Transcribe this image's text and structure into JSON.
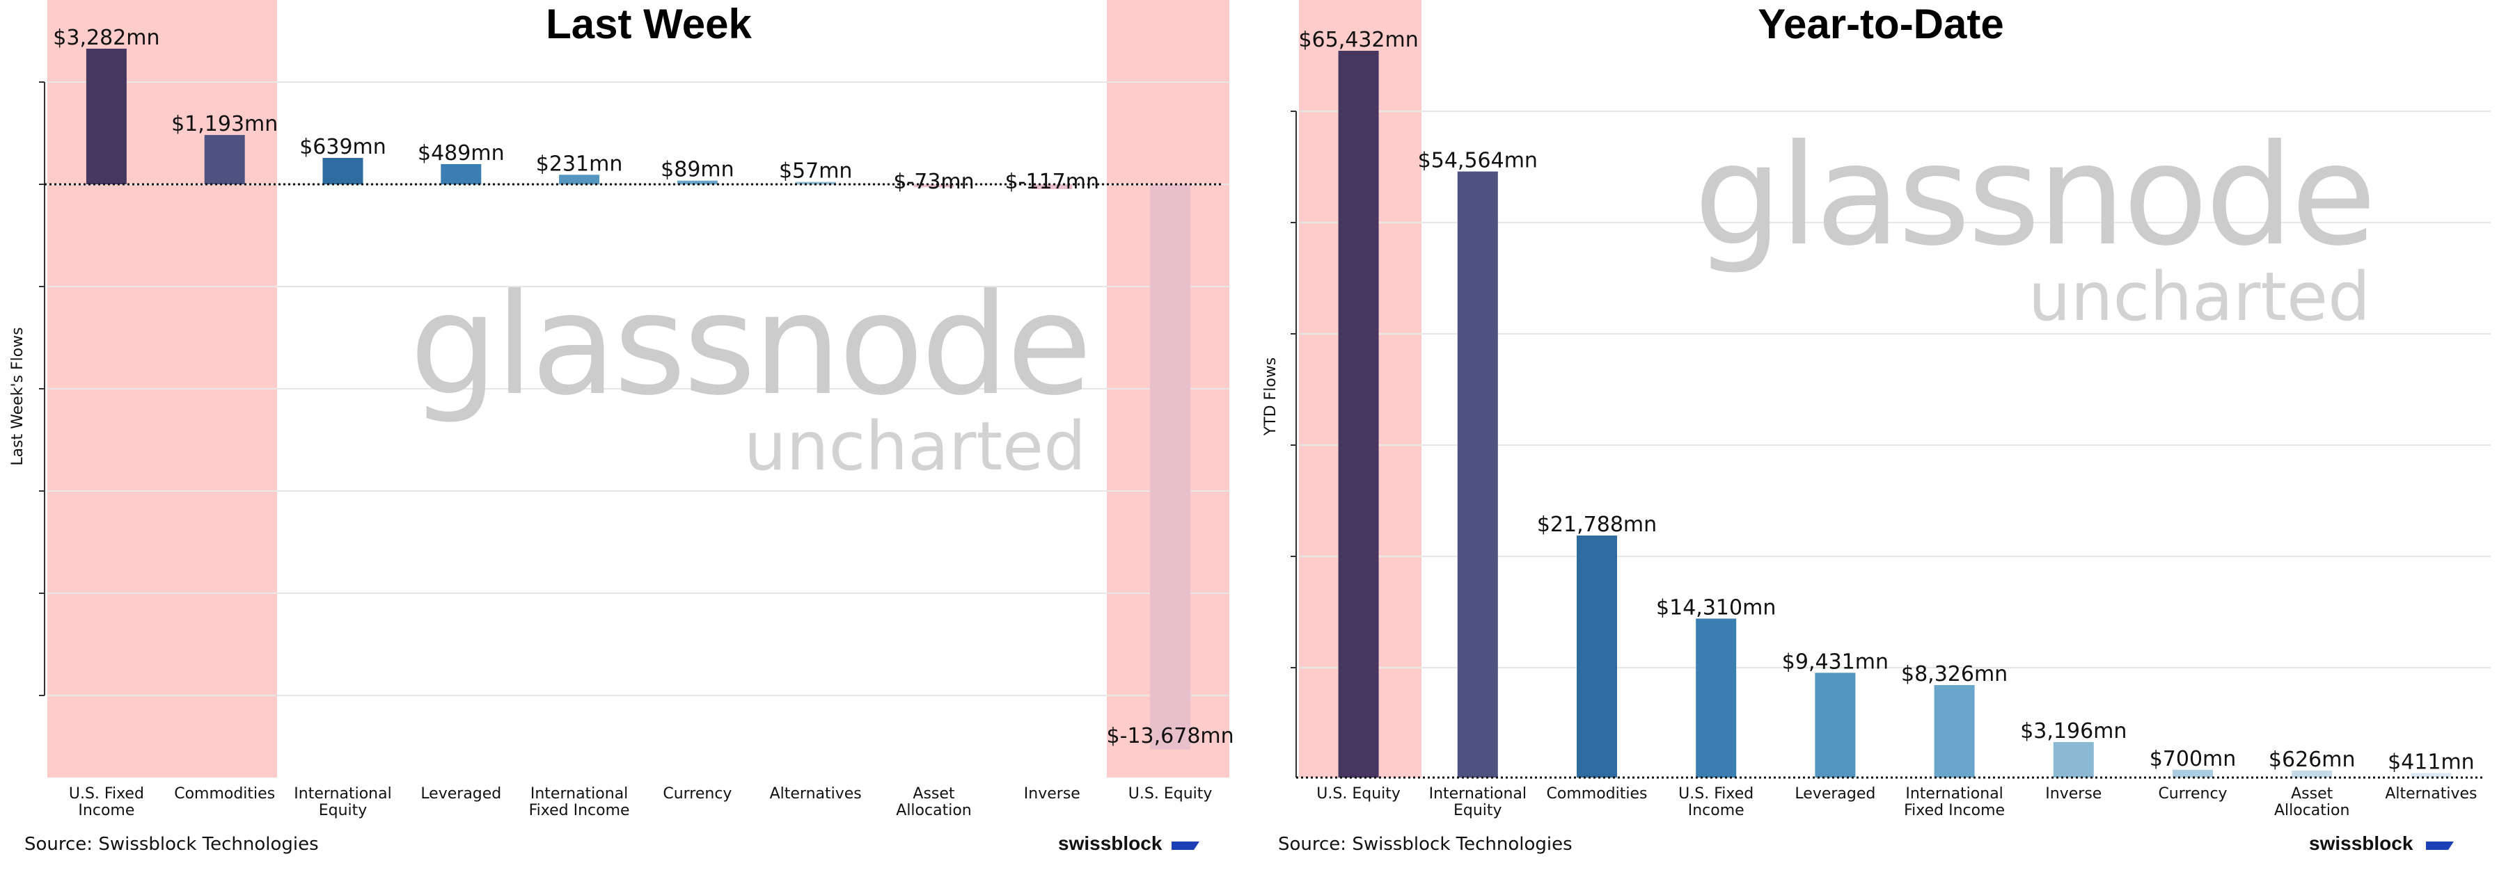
{
  "chart_data": [
    {
      "type": "bar",
      "title": "Last Week",
      "ylabel": "Last Week's Flows",
      "xlabel": "",
      "categories": [
        [
          "U.S. Fixed",
          "Income"
        ],
        [
          "Commodities"
        ],
        [
          "International",
          "Equity"
        ],
        [
          "Leveraged"
        ],
        [
          "International",
          "Fixed Income"
        ],
        [
          "Currency"
        ],
        [
          "Alternatives"
        ],
        [
          "Asset",
          "Allocation"
        ],
        [
          "Inverse"
        ],
        [
          "U.S. Equity"
        ]
      ],
      "values": [
        3282,
        1193,
        639,
        489,
        231,
        89,
        57,
        -73,
        -117,
        -13678
      ],
      "value_labels": [
        "$3,282mn",
        "$1,193mn",
        "$639mn",
        "$489mn",
        "$231mn",
        "$89mn",
        "$57mn",
        "$-73mn",
        "$-117mn",
        "$-13,678mn"
      ],
      "ylim": [
        -14000,
        3300
      ],
      "highlighted_categories": [
        "U.S. Fixed Income",
        "Commodities",
        "U.S. Equity"
      ],
      "zero_line": "dotted",
      "grid": true
    },
    {
      "type": "bar",
      "title": "Year-to-Date",
      "ylabel": "YTD Flows",
      "xlabel": "",
      "categories": [
        [
          "U.S. Equity"
        ],
        [
          "International",
          "Equity"
        ],
        [
          "Commodities"
        ],
        [
          "U.S. Fixed",
          "Income"
        ],
        [
          "Leveraged"
        ],
        [
          "International",
          "Fixed Income"
        ],
        [
          "Inverse"
        ],
        [
          "Currency"
        ],
        [
          "Asset",
          "Allocation"
        ],
        [
          "Alternatives"
        ]
      ],
      "values": [
        65432,
        54564,
        21788,
        14310,
        9431,
        8326,
        3196,
        700,
        626,
        411
      ],
      "value_labels": [
        "$65,432mn",
        "$54,564mn",
        "$21,788mn",
        "$14,310mn",
        "$9,431mn",
        "$8,326mn",
        "$3,196mn",
        "$700mn",
        "$626mn",
        "$411mn"
      ],
      "ylim": [
        0,
        66000
      ],
      "highlighted_categories": [
        "U.S. Equity"
      ],
      "zero_line": "dotted",
      "grid": true
    }
  ],
  "watermark": {
    "line1": "glassnode",
    "line2": "uncharted"
  },
  "footer": {
    "source": "Source: Swissblock Technologies",
    "brand": "swissblock"
  },
  "colors": {
    "highlight_band": "#ffcccc",
    "bars_positive_gradient": [
      "#45375f",
      "#4e5280",
      "#2e6b9e",
      "#3b7fb2",
      "#5496c0",
      "#6aa6cc",
      "#8bb8d2",
      "#aacbe0",
      "#c6dbea",
      "#dbe8f2"
    ],
    "bar_negative": "#e7c0cc",
    "brand_mark": "#1c3fb5"
  }
}
